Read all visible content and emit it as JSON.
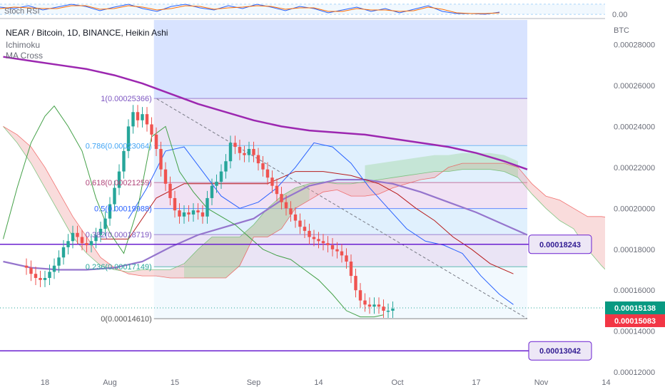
{
  "header": {
    "title": "NEAR / Bitcoin, 1D, BINANCE, Heikin Ashi",
    "indicator_1": "Ichimoku",
    "indicator_2": "MA Cross",
    "oscillator": "Stoch RSI",
    "oscillator_zero": "0.00"
  },
  "chart_data": {
    "type": "candlestick",
    "unit": "BTC",
    "ylim": [
      0.000119,
      0.000292
    ],
    "y_ticks": [
      "0.00012000",
      "0.00014000",
      "0.00016000",
      "0.00018000",
      "0.00020000",
      "0.00022000",
      "0.00024000",
      "0.00026000",
      "0.00028000"
    ],
    "x_ticks": [
      "18",
      "Aug",
      "15",
      "Sep",
      "14",
      "Oct",
      "17",
      "Nov",
      "14"
    ],
    "x_tick_day_index": [
      0,
      14,
      28,
      45,
      59,
      76,
      93,
      107,
      121
    ],
    "candles_open_close": [
      [
        0.000172,
        0.000171
      ],
      [
        0.000171,
        0.000168
      ],
      [
        0.000168,
        0.000166
      ],
      [
        0.000166,
        0.000165
      ],
      [
        0.000165,
        0.000166
      ],
      [
        0.000166,
        0.000169
      ],
      [
        0.000169,
        0.000172
      ],
      [
        0.000172,
        0.000176
      ],
      [
        0.000176,
        0.000181
      ],
      [
        0.000181,
        0.000184
      ],
      [
        0.000184,
        0.000188
      ],
      [
        0.000188,
        0.000186
      ],
      [
        0.000186,
        0.000183
      ],
      [
        0.000183,
        0.000182
      ],
      [
        0.000182,
        0.000184
      ],
      [
        0.000184,
        0.000187
      ],
      [
        0.000187,
        0.00019
      ],
      [
        0.00019,
        0.000195
      ],
      [
        0.000195,
        0.000202
      ],
      [
        0.000202,
        0.00021
      ],
      [
        0.00021,
        0.000218
      ],
      [
        0.000218,
        0.000228
      ],
      [
        0.000228,
        0.00024
      ],
      [
        0.00024,
        0.000247
      ],
      [
        0.000247,
        0.000243
      ],
      [
        0.000243,
        0.000246
      ],
      [
        0.000246,
        0.000241
      ],
      [
        0.000241,
        0.000236
      ],
      [
        0.000236,
        0.000229
      ],
      [
        0.000229,
        0.000219
      ],
      [
        0.000219,
        0.000212
      ],
      [
        0.000212,
        0.000205
      ],
      [
        0.000205,
        0.000199
      ],
      [
        0.000199,
        0.000196
      ],
      [
        0.000196,
        0.000198
      ],
      [
        0.000198,
        0.000197
      ],
      [
        0.000197,
        0.000199
      ],
      [
        0.000199,
        0.000198
      ],
      [
        0.000198,
        0.000196
      ],
      [
        0.000196,
        0.000205
      ],
      [
        0.000205,
        0.000211
      ],
      [
        0.000211,
        0.000213
      ],
      [
        0.000213,
        0.000218
      ],
      [
        0.000218,
        0.000223
      ],
      [
        0.000223,
        0.000232
      ],
      [
        0.000232,
        0.00023
      ],
      [
        0.00023,
        0.000227
      ],
      [
        0.000227,
        0.000226
      ],
      [
        0.000226,
        0.000229
      ],
      [
        0.000229,
        0.000226
      ],
      [
        0.000226,
        0.000222
      ],
      [
        0.000222,
        0.000219
      ],
      [
        0.000219,
        0.000215
      ],
      [
        0.000215,
        0.000211
      ],
      [
        0.000211,
        0.000207
      ],
      [
        0.000207,
        0.000203
      ],
      [
        0.000203,
        0.0002
      ],
      [
        0.0002,
        0.000197
      ],
      [
        0.000197,
        0.000194
      ],
      [
        0.000194,
        0.000191
      ],
      [
        0.000191,
        0.000189
      ],
      [
        0.000189,
        0.000186
      ],
      [
        0.000186,
        0.000185
      ],
      [
        0.000185,
        0.000184
      ],
      [
        0.000184,
        0.000183
      ],
      [
        0.000183,
        0.000182
      ],
      [
        0.000182,
        0.00018
      ],
      [
        0.00018,
        0.000179
      ],
      [
        0.000179,
        0.000177
      ],
      [
        0.000177,
        0.000174
      ],
      [
        0.000174,
        0.000167
      ],
      [
        0.000167,
        0.00016
      ],
      [
        0.00016,
        0.000155
      ],
      [
        0.000155,
        0.000153
      ],
      [
        0.000153,
        0.000152
      ],
      [
        0.000152,
        0.000153
      ],
      [
        0.000153,
        0.000152
      ],
      [
        0.000152,
        0.00015
      ],
      [
        0.00015,
        0.00015
      ],
      [
        0.00015,
        0.000151
      ]
    ],
    "candle_start_day_index": -4,
    "fib_levels": [
      {
        "label": "1(0.00025366)",
        "value": 0.00025366,
        "color": "#7e57c2"
      },
      {
        "label": "0.786(0.00023064)",
        "value": 0.00023064,
        "color": "#42a5f5"
      },
      {
        "label": "0.618(0.00021259)",
        "value": 0.00021259,
        "color": "#b0457a"
      },
      {
        "label": "0.5(0.00019988)",
        "value": 0.00019988,
        "color": "#2962ff"
      },
      {
        "label": "0.382(0.00018719)",
        "value": 0.00018719,
        "color": "#7e57c2"
      },
      {
        "label": "0.236(0.00017149)",
        "value": 0.00017149,
        "color": "#26a69a"
      },
      {
        "label": "0(0.00014610)",
        "value": 0.0001461,
        "color": "#555555"
      }
    ],
    "horizontal_levels": [
      {
        "label": "0.00018243",
        "value": 0.00018243
      },
      {
        "label": "0.00013042",
        "value": 0.00013042
      }
    ],
    "last_price": {
      "label": "0.00015138",
      "value": 0.00015138
    },
    "prev_price": {
      "label": "0.00015083",
      "value": 0.00015083
    },
    "colors": {
      "up": "#26a69a",
      "down": "#ef5350",
      "ma_long": "#9c27b0",
      "ma_short": "#9575cd",
      "kijun": "#b71c1c",
      "tenkan": "#2962ff",
      "chikou": "#43a047",
      "fib_box": "#2962ff",
      "level_line": "#6a1fd0"
    }
  }
}
